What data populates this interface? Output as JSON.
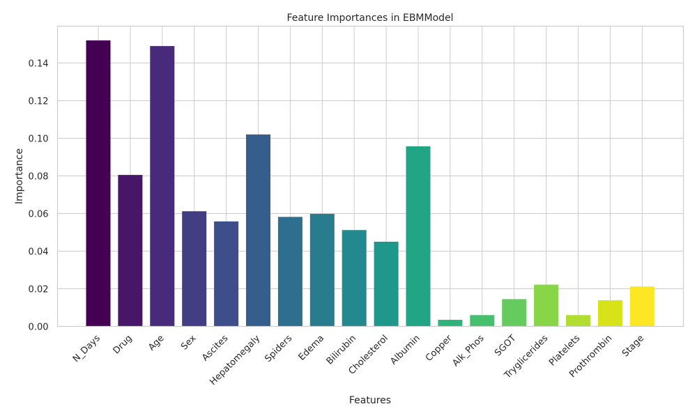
{
  "chart_data": {
    "type": "bar",
    "title": "Feature Importances in EBMModel",
    "xlabel": "Features",
    "ylabel": "Importance",
    "categories": [
      "N_Days",
      "Drug",
      "Age",
      "Sex",
      "Ascites",
      "Hepatomegaly",
      "Spiders",
      "Edema",
      "Bilirubin",
      "Cholesterol",
      "Albumin",
      "Copper",
      "Alk_Phos",
      "SGOT",
      "Tryglicerides",
      "Platelets",
      "Prothrombin",
      "Stage"
    ],
    "values": [
      0.152,
      0.0805,
      0.149,
      0.0612,
      0.0558,
      0.102,
      0.0582,
      0.0598,
      0.0512,
      0.045,
      0.0957,
      0.0035,
      0.006,
      0.0145,
      0.0222,
      0.006,
      0.0139,
      0.0212
    ],
    "colors": [
      "#440154",
      "#481668",
      "#472a7a",
      "#433d84",
      "#3d4e8a",
      "#355e8d",
      "#2e6e8e",
      "#297b8e",
      "#23898e",
      "#1f978b",
      "#21a585",
      "#2eb37c",
      "#46c06f",
      "#65cb5e",
      "#89d548",
      "#b0dd2f",
      "#d8e219",
      "#fde725"
    ],
    "yticks": [
      "0.00",
      "0.02",
      "0.04",
      "0.06",
      "0.08",
      "0.10",
      "0.12",
      "0.14"
    ],
    "ylim": [
      0,
      0.1596
    ],
    "grid": true,
    "legend": "none"
  }
}
